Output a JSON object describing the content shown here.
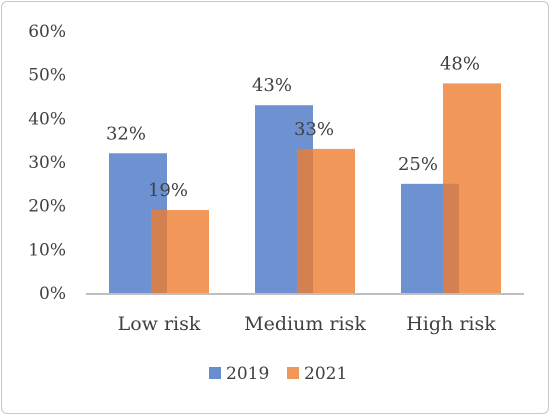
{
  "chart_data": {
    "type": "bar",
    "categories": [
      "Low risk",
      "Medium risk",
      "High risk"
    ],
    "series": [
      {
        "name": "2019",
        "values": [
          32,
          43,
          25
        ],
        "labels": [
          "32%",
          "43%",
          "25%"
        ],
        "color": "#4472C4"
      },
      {
        "name": "2021",
        "values": [
          19,
          33,
          48
        ],
        "labels": [
          "19%",
          "33%",
          "48%"
        ],
        "color": "#ED7D31"
      }
    ],
    "title": "",
    "xlabel": "",
    "ylabel": "",
    "ylim": [
      0,
      60
    ],
    "yticks": [
      "0%",
      "10%",
      "20%",
      "30%",
      "40%",
      "50%",
      "60%"
    ],
    "grid": false,
    "legend": "bottom"
  }
}
